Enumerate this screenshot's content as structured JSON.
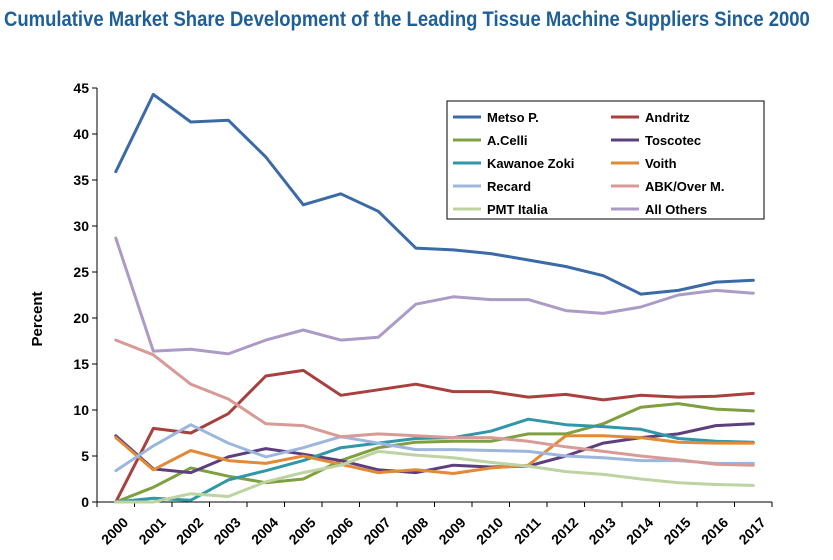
{
  "chart_data": {
    "type": "line",
    "title": "Cumulative Market Share Development of the Leading Tissue Machine Suppliers Since 2000",
    "xlabel": "",
    "ylabel": "Percent",
    "ylim": [
      0,
      45
    ],
    "yticks": [
      0,
      5,
      10,
      15,
      20,
      25,
      30,
      35,
      40,
      45
    ],
    "categories": [
      "2000",
      "2001",
      "2002",
      "2003",
      "2004",
      "2005",
      "2006",
      "2007",
      "2008",
      "2009",
      "2010",
      "2011",
      "2012",
      "2013",
      "2014",
      "2015",
      "2016",
      "2017"
    ],
    "grid": false,
    "legend_placement": "top-right",
    "series": [
      {
        "name": "Metso P.",
        "color": "#3b6aa6",
        "values": [
          35.9,
          44.3,
          41.3,
          41.5,
          37.5,
          32.3,
          33.5,
          31.6,
          27.6,
          27.4,
          27.0,
          26.3,
          25.6,
          24.6,
          22.6,
          23.0,
          23.9,
          24.1
        ]
      },
      {
        "name": "Andritz",
        "color": "#a8403d",
        "values": [
          0.0,
          8.0,
          7.5,
          9.6,
          13.7,
          14.3,
          11.6,
          12.2,
          12.8,
          12.0,
          12.0,
          11.4,
          11.7,
          11.1,
          11.6,
          11.4,
          11.5,
          11.8
        ]
      },
      {
        "name": "A.Celli",
        "color": "#7ea040",
        "values": [
          0.0,
          1.6,
          3.7,
          2.8,
          2.1,
          2.5,
          4.5,
          5.9,
          6.5,
          6.6,
          6.6,
          7.4,
          7.4,
          8.5,
          10.3,
          10.7,
          10.1,
          9.9
        ]
      },
      {
        "name": "Toscotec",
        "color": "#5e3f7e",
        "values": [
          7.2,
          3.6,
          3.2,
          4.9,
          5.8,
          5.2,
          4.5,
          3.5,
          3.2,
          4.0,
          3.8,
          3.9,
          5.0,
          6.4,
          7.0,
          7.4,
          8.3,
          8.5
        ]
      },
      {
        "name": "Kawanoe Zoki",
        "color": "#2f97a8",
        "values": [
          0.0,
          0.4,
          0.2,
          2.4,
          3.4,
          4.5,
          5.9,
          6.4,
          6.9,
          7.0,
          7.7,
          9.0,
          8.4,
          8.2,
          7.9,
          6.9,
          6.6,
          6.5
        ]
      },
      {
        "name": "Voith",
        "color": "#e28a35",
        "values": [
          7.0,
          3.5,
          5.6,
          4.5,
          4.2,
          5.0,
          4.1,
          3.2,
          3.5,
          3.1,
          3.7,
          4.0,
          7.2,
          7.2,
          7.0,
          6.5,
          6.4,
          6.4
        ]
      },
      {
        "name": "Recard",
        "color": "#9db6dd",
        "values": [
          3.4,
          6.1,
          8.4,
          6.4,
          4.9,
          5.9,
          7.1,
          6.4,
          5.7,
          5.7,
          5.6,
          5.5,
          5.0,
          4.8,
          4.5,
          4.5,
          4.2,
          4.2
        ]
      },
      {
        "name": "ABK/Over M.",
        "color": "#d89a96",
        "values": [
          17.6,
          16.0,
          12.8,
          11.2,
          8.5,
          8.3,
          7.1,
          7.4,
          7.2,
          7.0,
          7.0,
          6.6,
          6.0,
          5.5,
          5.0,
          4.6,
          4.1,
          4.0
        ]
      },
      {
        "name": "PMT Italia",
        "color": "#bdd3a1",
        "values": [
          0.0,
          0.0,
          0.9,
          0.6,
          2.2,
          3.2,
          4.0,
          5.5,
          5.1,
          4.8,
          4.3,
          3.9,
          3.3,
          3.0,
          2.5,
          2.1,
          1.9,
          1.8
        ]
      },
      {
        "name": "All Others",
        "color": "#ac9bc6",
        "values": [
          28.7,
          16.4,
          16.6,
          16.1,
          17.6,
          18.7,
          17.6,
          17.9,
          21.5,
          22.3,
          22.0,
          22.0,
          20.8,
          20.5,
          21.2,
          22.5,
          23.0,
          22.7
        ]
      }
    ]
  }
}
